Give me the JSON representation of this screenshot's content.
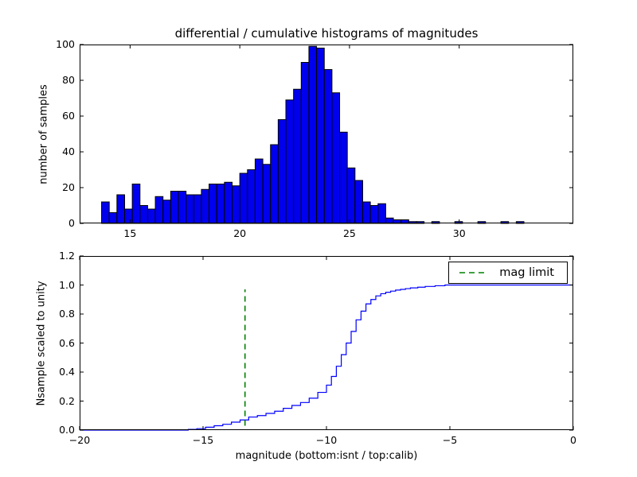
{
  "figure": {
    "background": "#ffffff",
    "title": "differential / cumulative histograms of magnitudes",
    "xlabel": "magnitude (bottom:isnt / top:calib)"
  },
  "chart_data": [
    {
      "type": "bar",
      "subtype": "histogram",
      "title": "differential / cumulative histograms of magnitudes",
      "ylabel": "number of samples",
      "bar_color": "#0000ee",
      "bar_edge_color": "#000000",
      "xlim": [
        12.7,
        35.2
      ],
      "ylim": [
        0,
        100
      ],
      "xticks": [
        15,
        20,
        25,
        30
      ],
      "xtick_labels": [
        "15",
        "20",
        "25",
        "30"
      ],
      "yticks": [
        0,
        20,
        40,
        60,
        80,
        100
      ],
      "ytick_labels": [
        "0",
        "20",
        "40",
        "60",
        "80",
        "100"
      ],
      "bin_start": 13.7,
      "bin_width": 0.35,
      "values": [
        12,
        6,
        16,
        8,
        22,
        10,
        8,
        15,
        13,
        18,
        18,
        16,
        16,
        19,
        22,
        22,
        23,
        21,
        28,
        30,
        36,
        33,
        44,
        58,
        69,
        75,
        90,
        99,
        98,
        86,
        73,
        51,
        31,
        24,
        12,
        10,
        11,
        3,
        2,
        2,
        1,
        1,
        0,
        1,
        0,
        0,
        1,
        0,
        0,
        1,
        0,
        0,
        1,
        0,
        1
      ]
    },
    {
      "type": "line",
      "subtype": "cumulative-step",
      "ylabel": "Nsample scaled to unity",
      "xlabel": "magnitude (bottom:isnt / top:calib)",
      "line_color": "#0000ff",
      "xlim": [
        -20,
        0
      ],
      "ylim": [
        0,
        1.2
      ],
      "xticks": [
        -20,
        -15,
        -10,
        -5,
        0
      ],
      "xtick_labels": [
        "−20",
        "−15",
        "−10",
        "−5",
        "0"
      ],
      "yticks": [
        0,
        0.2,
        0.4,
        0.6,
        0.8,
        1.0,
        1.2
      ],
      "ytick_labels": [
        "0.0",
        "0.2",
        "0.4",
        "0.6",
        "0.8",
        "1.0",
        "1.2"
      ],
      "points": [
        [
          -20,
          0
        ],
        [
          -15.6,
          0.005
        ],
        [
          -15.25,
          0.01
        ],
        [
          -14.9,
          0.02
        ],
        [
          -14.55,
          0.03
        ],
        [
          -14.2,
          0.04
        ],
        [
          -13.85,
          0.055
        ],
        [
          -13.5,
          0.07
        ],
        [
          -13.15,
          0.09
        ],
        [
          -12.8,
          0.1
        ],
        [
          -12.45,
          0.115
        ],
        [
          -12.1,
          0.13
        ],
        [
          -11.75,
          0.15
        ],
        [
          -11.4,
          0.17
        ],
        [
          -11.05,
          0.19
        ],
        [
          -10.7,
          0.22
        ],
        [
          -10.35,
          0.26
        ],
        [
          -10.0,
          0.31
        ],
        [
          -9.8,
          0.37
        ],
        [
          -9.6,
          0.44
        ],
        [
          -9.4,
          0.52
        ],
        [
          -9.2,
          0.6
        ],
        [
          -9.0,
          0.68
        ],
        [
          -8.8,
          0.76
        ],
        [
          -8.6,
          0.82
        ],
        [
          -8.4,
          0.87
        ],
        [
          -8.2,
          0.9
        ],
        [
          -8.0,
          0.925
        ],
        [
          -7.8,
          0.94
        ],
        [
          -7.6,
          0.95
        ],
        [
          -7.4,
          0.958
        ],
        [
          -7.2,
          0.965
        ],
        [
          -7.0,
          0.97
        ],
        [
          -6.8,
          0.975
        ],
        [
          -6.6,
          0.98
        ],
        [
          -6.3,
          0.985
        ],
        [
          -6.0,
          0.99
        ],
        [
          -5.6,
          0.995
        ],
        [
          -5.2,
          1.0
        ],
        [
          0,
          1.0
        ]
      ],
      "vline": {
        "x": -13.3,
        "y_from": 0.03,
        "y_to": 0.97,
        "color": "#008000",
        "style": "dashed"
      },
      "legend_label": "mag limit"
    }
  ]
}
